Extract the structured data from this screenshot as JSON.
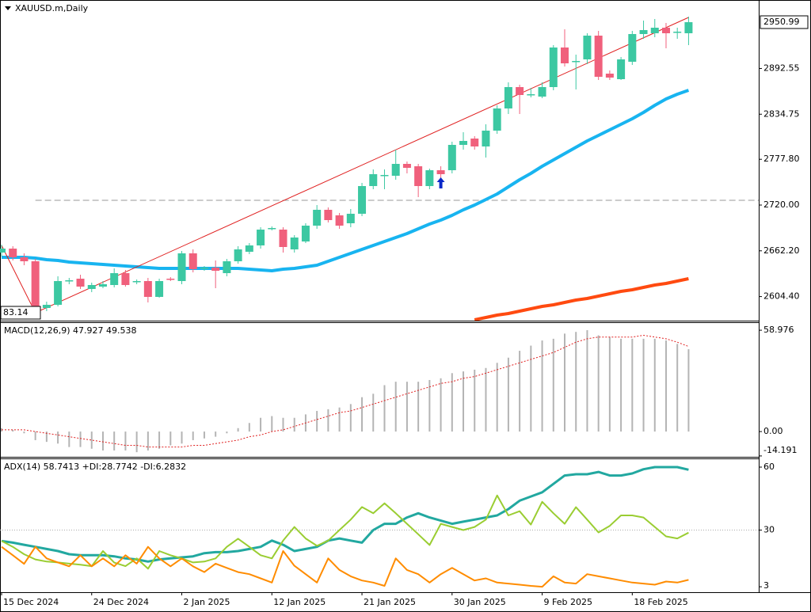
{
  "chart_data": {
    "type": "candlestick",
    "title": "XAUUSD.m,Daily",
    "categories": [
      "15 Dec 2024",
      null,
      null,
      null,
      null,
      null,
      null,
      null,
      "24 Dec 2024",
      null,
      null,
      null,
      null,
      null,
      null,
      null,
      "2 Jan 2025",
      null,
      null,
      null,
      null,
      null,
      null,
      null,
      "12 Jan 2025",
      null,
      null,
      null,
      null,
      null,
      null,
      null,
      "21 Jan 2025",
      null,
      null,
      null,
      null,
      null,
      null,
      null,
      "30 Jan 2025",
      null,
      null,
      null,
      null,
      null,
      null,
      null,
      "9 Feb 2025",
      null,
      null,
      null,
      null,
      null,
      null,
      null,
      "18 Feb 2025",
      null,
      null,
      null,
      null,
      null
    ],
    "open": [
      2660,
      2665,
      2654,
      2649,
      2590,
      2594,
      2624,
      2627,
      2614,
      2617,
      2619,
      2634,
      2623,
      2624,
      2604,
      2627,
      2624,
      2659,
      2640,
      2641,
      2634,
      2649,
      2661,
      2669,
      2690,
      2689,
      2664,
      2674,
      2694,
      2714,
      2707,
      2697,
      2709,
      2744,
      2757,
      2757,
      2772,
      2769,
      2744,
      2764,
      2764,
      2796,
      2804,
      2794,
      2814,
      2842,
      2869,
      2859,
      2857,
      2869,
      2919,
      2901,
      2904,
      2934,
      2886,
      2879,
      2901,
      2936,
      2937,
      2944,
      2938,
      2937
    ],
    "high": [
      2670,
      2668,
      2659,
      2652,
      2598,
      2630,
      2628,
      2632,
      2622,
      2624,
      2640,
      2638,
      2626,
      2628,
      2627,
      2629,
      2662,
      2664,
      2643,
      2650,
      2652,
      2668,
      2672,
      2692,
      2693,
      2692,
      2682,
      2697,
      2720,
      2717,
      2710,
      2715,
      2748,
      2765,
      2765,
      2790,
      2775,
      2772,
      2766,
      2769,
      2800,
      2812,
      2807,
      2822,
      2846,
      2875,
      2872,
      2868,
      2875,
      2922,
      2942,
      2910,
      2937,
      2940,
      2890,
      2907,
      2940,
      2953,
      2955,
      2950,
      2944,
      2958
    ],
    "low": [
      2655,
      2650,
      2644,
      2584,
      2586,
      2592,
      2620,
      2614,
      2610,
      2615,
      2616,
      2617,
      2620,
      2597,
      2603,
      2624,
      2620,
      2635,
      2637,
      2615,
      2630,
      2646,
      2658,
      2665,
      2688,
      2660,
      2660,
      2672,
      2690,
      2698,
      2690,
      2692,
      2706,
      2740,
      2740,
      2752,
      2760,
      2730,
      2740,
      2753,
      2760,
      2790,
      2790,
      2780,
      2810,
      2835,
      2835,
      2856,
      2855,
      2865,
      2895,
      2866,
      2898,
      2878,
      2878,
      2878,
      2897,
      2930,
      2932,
      2918,
      2930,
      2922
    ],
    "close": [
      2665,
      2654,
      2649,
      2589,
      2594,
      2624,
      2625,
      2617,
      2619,
      2620,
      2634,
      2619,
      2624,
      2604,
      2624,
      2626,
      2659,
      2639,
      2641,
      2637,
      2649,
      2664,
      2669,
      2689,
      2691,
      2667,
      2679,
      2694,
      2714,
      2701,
      2694,
      2709,
      2744,
      2759,
      2758,
      2772,
      2767,
      2744,
      2764,
      2759,
      2796,
      2801,
      2794,
      2814,
      2842,
      2869,
      2859,
      2860,
      2869,
      2919,
      2899,
      2902,
      2934,
      2882,
      2881,
      2904,
      2936,
      2941,
      2944,
      2937,
      2939,
      2950.99
    ],
    "up_color": "#3cc8a2",
    "down_color": "#f0607c",
    "ylim": [
      2574,
      2976
    ],
    "yticks": [
      {
        "value": 2604.4,
        "label": "2604.40"
      },
      {
        "value": 2662.2,
        "label": "2662.20"
      },
      {
        "value": 2720,
        "label": "2720.00"
      },
      {
        "value": 2777.8,
        "label": "2777.80"
      },
      2834.75,
      2892.55
    ],
    "overlays": [
      {
        "color": "#18b4f0",
        "values": [
          2654,
          2654,
          2654,
          2653,
          2651,
          2650,
          2648,
          2647,
          2646,
          2645,
          2644,
          2643,
          2642,
          2641,
          2640,
          2640,
          2640,
          2640,
          2640,
          2640,
          2640,
          2640,
          2639,
          2638,
          2637,
          2639,
          2640,
          2642,
          2644,
          2649,
          2654,
          2659,
          2664,
          2669,
          2674,
          2679,
          2684,
          2690,
          2696,
          2701,
          2707,
          2714,
          2720,
          2727,
          2734,
          2743,
          2752,
          2760,
          2769,
          2777,
          2785,
          2793,
          2801,
          2808,
          2815,
          2822,
          2829,
          2837,
          2846,
          2854,
          2860,
          2865
        ]
      },
      {
        "color": "#ff4a10",
        "values": [
          null,
          null,
          null,
          null,
          null,
          null,
          null,
          null,
          null,
          null,
          null,
          null,
          null,
          null,
          null,
          null,
          null,
          null,
          null,
          null,
          null,
          null,
          null,
          null,
          null,
          null,
          null,
          null,
          null,
          null,
          null,
          null,
          null,
          null,
          null,
          null,
          null,
          null,
          null,
          null,
          null,
          null,
          2575,
          2578,
          2581,
          2583,
          2586,
          2589,
          2592,
          2594,
          2597,
          2600,
          2602,
          2605,
          2608,
          2611,
          2613,
          2616,
          2619,
          2621,
          2624,
          2627
        ]
      }
    ],
    "trendline": {
      "color": "#e02020",
      "points": [
        [
          0,
          2669
        ],
        [
          3,
          2584
        ],
        [
          61,
          2957
        ]
      ]
    },
    "hline": {
      "value": 2726,
      "start": 3,
      "color": "#999999"
    },
    "arrow": {
      "index": 39,
      "value": 2755,
      "color": "#0a28c8"
    },
    "price_label": 2950.99,
    "low_label": "83.14",
    "panes": [
      {
        "type": "macd",
        "label": "MACD(12,26,9) 47.927 49.538",
        "ylim": [
          -14.7,
          62.7
        ],
        "yticks": [
          58.976,
          {
            "value": 0,
            "label": "0.00"
          },
          -14.191
        ],
        "histogram": {
          "color": "#b4b4b4",
          "values": [
            2,
            1,
            -1,
            -5,
            -6,
            -7,
            -9,
            -9,
            -10,
            -11,
            -11,
            -11,
            -12,
            -11,
            -10,
            -8,
            -7,
            -5,
            -4,
            -3,
            -1,
            2,
            5,
            8,
            9,
            8,
            8,
            10,
            12,
            13,
            14,
            16,
            20,
            22,
            27,
            29,
            29,
            29,
            30,
            31,
            34,
            35,
            36,
            37,
            40,
            43,
            47,
            50,
            53,
            54,
            57,
            58,
            59,
            56,
            55,
            54,
            54,
            54,
            54,
            53,
            51,
            47.927
          ]
        },
        "signal": {
          "color": "#e02020",
          "values": [
            1,
            1,
            1,
            0,
            -1,
            -2,
            -3,
            -4,
            -5,
            -6,
            -7,
            -8,
            -8,
            -9,
            -9,
            -9,
            -9,
            -8,
            -8,
            -7,
            -6,
            -5,
            -3,
            -2,
            0,
            1,
            3,
            5,
            7,
            9,
            11,
            12,
            14,
            16,
            18,
            20,
            22,
            24,
            26,
            28,
            29,
            31,
            32,
            34,
            36,
            38,
            40,
            42,
            44,
            46,
            49,
            52,
            54,
            55,
            55,
            55,
            55,
            56,
            55,
            54,
            52,
            49.538
          ]
        }
      },
      {
        "type": "adx",
        "label": "ADX(14) 58.7413 +DI:28.7742 -DI:6.2832",
        "ylim": [
          0.4,
          63.4
        ],
        "yticks": [
          3,
          30,
          60
        ],
        "level": 30,
        "series": [
          {
            "color": "#22a8a0",
            "values": [
              24.8,
              24,
              23,
              22,
              21,
              20,
              18.5,
              18,
              18,
              18,
              17.5,
              16.5,
              16,
              15,
              16,
              16.5,
              17,
              17.5,
              19,
              19.5,
              19.5,
              20,
              21,
              22,
              25,
              23,
              20,
              21,
              22,
              25,
              26,
              25,
              24,
              30,
              33,
              33,
              36,
              38,
              36,
              34.5,
              33,
              34,
              35,
              36,
              37,
              40,
              44,
              46,
              48,
              52,
              56,
              56.6,
              56.6,
              57.7,
              56,
              56,
              57,
              59,
              60,
              60,
              60,
              58.7413
            ]
          },
          {
            "color": "#9acd32",
            "values": [
              24.8,
              22,
              18.5,
              16,
              15,
              14.6,
              14,
              13.5,
              12.8,
              20,
              14.5,
              12.8,
              16.5,
              11.6,
              20,
              18,
              16.5,
              14.6,
              15,
              16.5,
              22,
              25.9,
              22,
              18,
              16.5,
              25,
              31.5,
              26,
              22.5,
              25,
              30,
              35,
              41,
              38,
              42.75,
              38,
              33,
              28,
              22.9,
              33,
              31.5,
              30,
              31.5,
              35,
              46.5,
              37,
              39,
              32.6,
              43.5,
              38,
              33,
              40.9,
              35,
              28.9,
              32,
              37,
              37,
              36,
              31.5,
              27,
              26,
              28.7742
            ]
          },
          {
            "color": "#ff8c00",
            "values": [
              22,
              18,
              13.9,
              22,
              16.5,
              14.6,
              12.75,
              18,
              12.75,
              16.5,
              12.75,
              18,
              14,
              22,
              16.5,
              12.75,
              16.5,
              12.75,
              10,
              14,
              12,
              10,
              9,
              7,
              5,
              20,
              13,
              9,
              5,
              16.5,
              11,
              8,
              6,
              5,
              3.4,
              16.5,
              11,
              9,
              5,
              9,
              12,
              9,
              6,
              7,
              5,
              4.5,
              4,
              3.4,
              3,
              8,
              5,
              4.5,
              9,
              8,
              7,
              6,
              5,
              4.5,
              4,
              5.5,
              5,
              6.2832
            ]
          }
        ]
      }
    ]
  }
}
